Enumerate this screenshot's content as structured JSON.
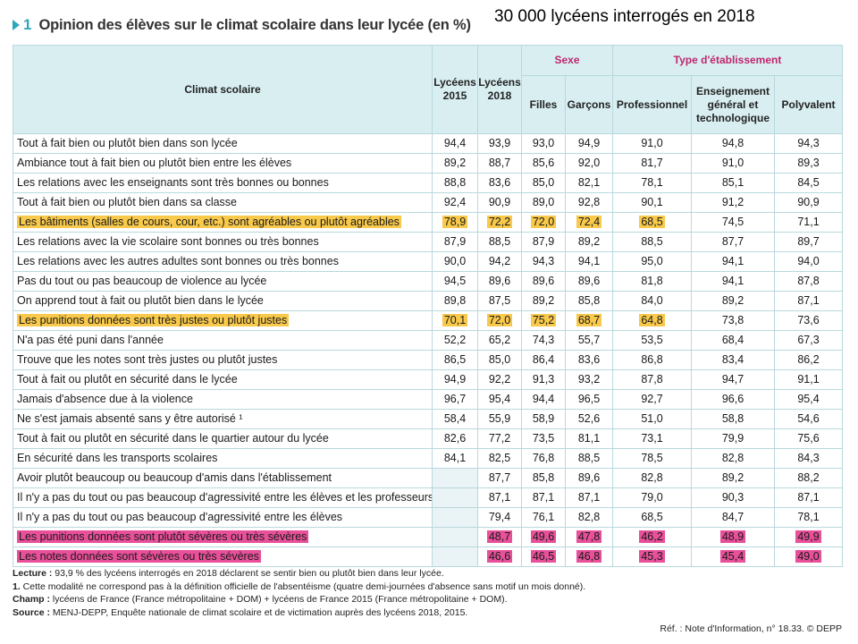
{
  "header": {
    "number": "1",
    "title": "Opinion des élèves sur le climat scolaire dans leur lycée (en %)",
    "note": "30 000 lycéens interrogés en 2018"
  },
  "table": {
    "col_label": "Climat scolaire",
    "col_2015": "Lycéens 2015",
    "col_2018": "Lycéens 2018",
    "group_sexe": "Sexe",
    "group_type": "Type d'établissement",
    "sub_filles": "Filles",
    "sub_garcons": "Garçons",
    "sub_pro": "Professionnel",
    "sub_gen": "Enseignement général et technologique",
    "sub_poly": "Polyvalent",
    "highlight_colors": {
      "yellow": "#f8c94b",
      "pink": "#e8509a"
    },
    "rows": [
      {
        "label": "Tout à fait bien ou plutôt bien dans son lycée",
        "values": [
          "94,4",
          "93,9",
          "93,0",
          "94,9",
          "91,0",
          "94,8",
          "94,3"
        ],
        "hl": ""
      },
      {
        "label": "Ambiance tout à fait bien ou plutôt bien entre les élèves",
        "values": [
          "89,2",
          "88,7",
          "85,6",
          "92,0",
          "81,7",
          "91,0",
          "89,3"
        ],
        "hl": ""
      },
      {
        "label": "Les relations avec les enseignants sont très bonnes ou bonnes",
        "values": [
          "88,8",
          "83,6",
          "85,0",
          "82,1",
          "78,1",
          "85,1",
          "84,5"
        ],
        "hl": ""
      },
      {
        "label": "Tout à fait bien ou plutôt bien dans sa classe",
        "values": [
          "92,4",
          "90,9",
          "89,0",
          "92,8",
          "90,1",
          "91,2",
          "90,9"
        ],
        "hl": ""
      },
      {
        "label": "Les bâtiments (salles de cours, cour, etc.) sont agréables ou plutôt agréables",
        "values": [
          "78,9",
          "72,2",
          "72,0",
          "72,4",
          "68,5",
          "74,5",
          "71,1"
        ],
        "hl": "yellow"
      },
      {
        "label": "Les relations avec la vie scolaire sont bonnes ou très bonnes",
        "values": [
          "87,9",
          "88,5",
          "87,9",
          "89,2",
          "88,5",
          "87,7",
          "89,7"
        ],
        "hl": ""
      },
      {
        "label": "Les relations avec les autres adultes sont bonnes ou très bonnes",
        "values": [
          "90,0",
          "94,2",
          "94,3",
          "94,1",
          "95,0",
          "94,1",
          "94,0"
        ],
        "hl": ""
      },
      {
        "label": "Pas du tout ou pas beaucoup de violence au lycée",
        "values": [
          "94,5",
          "89,6",
          "89,6",
          "89,6",
          "81,8",
          "94,1",
          "87,8"
        ],
        "hl": ""
      },
      {
        "label": "On apprend tout à fait ou plutôt bien dans le lycée",
        "values": [
          "89,8",
          "87,5",
          "89,2",
          "85,8",
          "84,0",
          "89,2",
          "87,1"
        ],
        "hl": ""
      },
      {
        "label": "Les punitions données sont très justes ou plutôt justes",
        "values": [
          "70,1",
          "72,0",
          "75,2",
          "68,7",
          "64,8",
          "73,8",
          "73,6"
        ],
        "hl": "yellow"
      },
      {
        "label": "N'a pas été puni dans l'année",
        "values": [
          "52,2",
          "65,2",
          "74,3",
          "55,7",
          "53,5",
          "68,4",
          "67,3"
        ],
        "hl": ""
      },
      {
        "label": "Trouve que les notes sont très justes ou plutôt justes",
        "values": [
          "86,5",
          "85,0",
          "86,4",
          "83,6",
          "86,8",
          "83,4",
          "86,2"
        ],
        "hl": ""
      },
      {
        "label": "Tout à fait ou plutôt en sécurité dans le lycée",
        "values": [
          "94,9",
          "92,2",
          "91,3",
          "93,2",
          "87,8",
          "94,7",
          "91,1"
        ],
        "hl": ""
      },
      {
        "label": "Jamais d'absence due à la violence",
        "values": [
          "96,7",
          "95,4",
          "94,4",
          "96,5",
          "92,7",
          "96,6",
          "95,4"
        ],
        "hl": ""
      },
      {
        "label": "Ne s'est jamais absenté sans y être autorisé ¹",
        "values": [
          "58,4",
          "55,9",
          "58,9",
          "52,6",
          "51,0",
          "58,8",
          "54,6"
        ],
        "hl": ""
      },
      {
        "label": "Tout à fait ou plutôt en sécurité dans le quartier autour du lycée",
        "values": [
          "82,6",
          "77,2",
          "73,5",
          "81,1",
          "73,1",
          "79,9",
          "75,6"
        ],
        "hl": ""
      },
      {
        "label": "En sécurité dans les transports scolaires",
        "values": [
          "84,1",
          "82,5",
          "76,8",
          "88,5",
          "78,5",
          "82,8",
          "84,3"
        ],
        "hl": ""
      },
      {
        "label": "Avoir plutôt beaucoup ou beaucoup d'amis dans l'établissement",
        "values": [
          "",
          "87,7",
          "85,8",
          "89,6",
          "82,8",
          "89,2",
          "88,2"
        ],
        "hl": ""
      },
      {
        "label": "Il n'y a pas du tout ou pas beaucoup d'agressivité entre les élèves et les professeurs",
        "values": [
          "",
          "87,1",
          "87,1",
          "87,1",
          "79,0",
          "90,3",
          "87,1"
        ],
        "hl": ""
      },
      {
        "label": "Il n'y a pas du tout ou pas beaucoup d'agressivité entre les élèves",
        "values": [
          "",
          "79,4",
          "76,1",
          "82,8",
          "68,5",
          "84,7",
          "78,1"
        ],
        "hl": ""
      },
      {
        "label": "Les punitions données sont plutôt sévères ou très sévères",
        "values": [
          "",
          "48,7",
          "49,6",
          "47,8",
          "46,2",
          "48,9",
          "49,9"
        ],
        "hl": "pink"
      },
      {
        "label": "Les notes données sont sévères ou très sévères",
        "values": [
          "",
          "46,6",
          "46,5",
          "46,8",
          "45,3",
          "45,4",
          "49,0"
        ],
        "hl": "pink"
      }
    ]
  },
  "footer": {
    "lecture_label": "Lecture :",
    "lecture_text": " 93,9 % des lycéens interrogés en 2018 déclarent se sentir bien ou plutôt bien dans leur lycée.",
    "note1_label": "1.",
    "note1_text": " Cette modalité ne correspond pas à la définition officielle de l'absentéisme (quatre demi-journées d'absence sans motif un mois donné).",
    "champ_label": "Champ :",
    "champ_text": " lycéens de France (France métropolitaine + DOM) + lycéens de France 2015 (France métropolitaine + DOM).",
    "source_label": "Source :",
    "source_text": " MENJ-DEPP, Enquête nationale de climat scolaire et de victimation auprès des lycéens 2018, 2015.",
    "ref": "Réf. : Note d'Information, n° 18.33. © DEPP"
  }
}
